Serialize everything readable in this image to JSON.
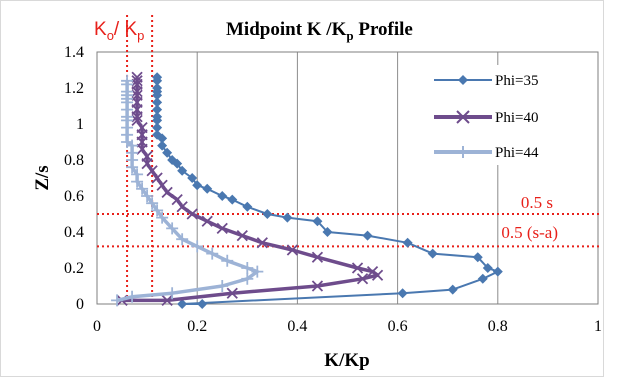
{
  "chart_data": {
    "type": "line",
    "title_main": "Midpoint K /K",
    "title_sub": "p",
    "title_tail": " Profile",
    "xlabel": "K/Kp",
    "ylabel": "Z/s",
    "xlim": [
      0,
      1
    ],
    "ylim": [
      0,
      1.4
    ],
    "xticks": [
      "0",
      "0.2",
      "0.4",
      "0.6",
      "0.8",
      "1"
    ],
    "yticks": [
      "0",
      "0.2",
      "0.4",
      "0.6",
      "0.8",
      "1",
      "1.2",
      "1.4"
    ],
    "grid": "vertical",
    "legend_position": "top-right",
    "colors": {
      "phi35": "#4a78b0",
      "phi40": "#6e4c8c",
      "phi44": "#9db3d6",
      "annotation": "#e8201a"
    },
    "series": [
      {
        "name": "Phi=35",
        "marker": "diamond",
        "x": [
          0.21,
          0.17,
          0.61,
          0.71,
          0.77,
          0.8,
          0.78,
          0.76,
          0.67,
          0.62,
          0.54,
          0.46,
          0.44,
          0.38,
          0.34,
          0.3,
          0.27,
          0.25,
          0.22,
          0.2,
          0.19,
          0.17,
          0.16,
          0.15,
          0.14,
          0.13,
          0.13,
          0.12,
          0.12,
          0.12,
          0.12,
          0.12,
          0.12,
          0.12,
          0.12,
          0.12,
          0.12,
          0.12
        ],
        "y": [
          0,
          0,
          0.06,
          0.08,
          0.14,
          0.18,
          0.2,
          0.26,
          0.28,
          0.34,
          0.38,
          0.4,
          0.46,
          0.48,
          0.5,
          0.54,
          0.58,
          0.6,
          0.64,
          0.66,
          0.7,
          0.74,
          0.78,
          0.8,
          0.84,
          0.88,
          0.92,
          0.94,
          0.98,
          1.02,
          1.04,
          1.08,
          1.12,
          1.16,
          1.18,
          1.2,
          1.24,
          1.26
        ]
      },
      {
        "name": "Phi=40",
        "marker": "x",
        "x": [
          0.05,
          0.14,
          0.27,
          0.44,
          0.53,
          0.56,
          0.55,
          0.52,
          0.44,
          0.39,
          0.33,
          0.29,
          0.25,
          0.22,
          0.19,
          0.17,
          0.16,
          0.14,
          0.13,
          0.12,
          0.11,
          0.1,
          0.1,
          0.09,
          0.09,
          0.09,
          0.09,
          0.08,
          0.08,
          0.08,
          0.08,
          0.08,
          0.08,
          0.08,
          0.08,
          0.08
        ],
        "y": [
          0.02,
          0.02,
          0.06,
          0.1,
          0.14,
          0.16,
          0.18,
          0.2,
          0.26,
          0.3,
          0.34,
          0.38,
          0.42,
          0.46,
          0.5,
          0.54,
          0.58,
          0.62,
          0.66,
          0.7,
          0.74,
          0.78,
          0.82,
          0.86,
          0.9,
          0.94,
          0.98,
          1.02,
          1.04,
          1.08,
          1.12,
          1.16,
          1.18,
          1.22,
          1.24,
          1.26
        ]
      },
      {
        "name": "Phi=44",
        "marker": "cross",
        "x": [
          0.04,
          0.07,
          0.15,
          0.25,
          0.3,
          0.32,
          0.3,
          0.26,
          0.23,
          0.2,
          0.17,
          0.15,
          0.13,
          0.12,
          0.11,
          0.1,
          0.09,
          0.08,
          0.08,
          0.07,
          0.07,
          0.07,
          0.07,
          0.06,
          0.06,
          0.06,
          0.06,
          0.06,
          0.06,
          0.06,
          0.06,
          0.06,
          0.06,
          0.06,
          0.06
        ],
        "y": [
          0.02,
          0.04,
          0.06,
          0.1,
          0.14,
          0.18,
          0.2,
          0.24,
          0.28,
          0.32,
          0.36,
          0.42,
          0.48,
          0.52,
          0.56,
          0.6,
          0.64,
          0.68,
          0.72,
          0.76,
          0.8,
          0.84,
          0.88,
          0.9,
          0.94,
          0.98,
          1.02,
          1.04,
          1.08,
          1.12,
          1.14,
          1.16,
          1.18,
          1.22,
          1.24
        ]
      }
    ],
    "reference_lines": {
      "vertical": [
        {
          "x": 0.06
        },
        {
          "x": 0.11
        }
      ],
      "horizontal": [
        {
          "y": 0.5,
          "label": "0.5 s"
        },
        {
          "y": 0.32,
          "label": "0.5 (s-a)"
        }
      ]
    },
    "annotation": {
      "ko_main": "K",
      "ko_sub": "o",
      "slash": "/ K",
      "kp_sub": "p"
    }
  }
}
